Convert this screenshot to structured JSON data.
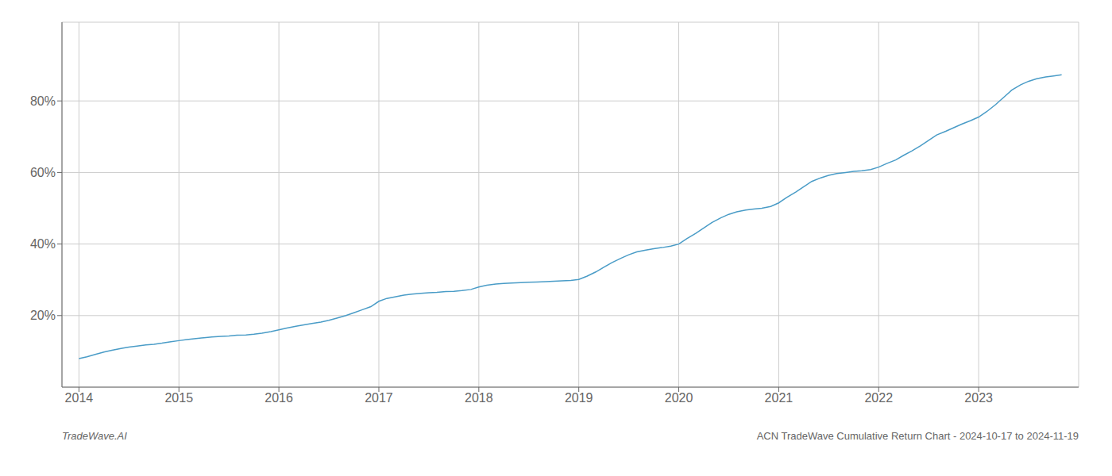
{
  "chart_data": {
    "type": "line",
    "x": [
      2014.0,
      2014.08,
      2014.17,
      2014.25,
      2014.33,
      2014.42,
      2014.5,
      2014.58,
      2014.67,
      2014.75,
      2014.83,
      2014.92,
      2015.0,
      2015.08,
      2015.17,
      2015.25,
      2015.33,
      2015.42,
      2015.5,
      2015.58,
      2015.67,
      2015.75,
      2015.83,
      2015.92,
      2016.0,
      2016.08,
      2016.17,
      2016.25,
      2016.33,
      2016.42,
      2016.5,
      2016.58,
      2016.67,
      2016.75,
      2016.83,
      2016.92,
      2017.0,
      2017.08,
      2017.17,
      2017.25,
      2017.33,
      2017.42,
      2017.5,
      2017.58,
      2017.67,
      2017.75,
      2017.83,
      2017.92,
      2018.0,
      2018.08,
      2018.17,
      2018.25,
      2018.33,
      2018.42,
      2018.5,
      2018.58,
      2018.67,
      2018.75,
      2018.83,
      2018.92,
      2019.0,
      2019.08,
      2019.17,
      2019.25,
      2019.33,
      2019.42,
      2019.5,
      2019.58,
      2019.67,
      2019.75,
      2019.83,
      2019.92,
      2020.0,
      2020.08,
      2020.17,
      2020.25,
      2020.33,
      2020.42,
      2020.5,
      2020.58,
      2020.67,
      2020.75,
      2020.83,
      2020.92,
      2021.0,
      2021.08,
      2021.17,
      2021.25,
      2021.33,
      2021.42,
      2021.5,
      2021.58,
      2021.67,
      2021.75,
      2021.83,
      2021.92,
      2022.0,
      2022.08,
      2022.17,
      2022.25,
      2022.33,
      2022.42,
      2022.5,
      2022.58,
      2022.67,
      2022.75,
      2022.83,
      2022.92,
      2023.0,
      2023.08,
      2023.17,
      2023.25,
      2023.33,
      2023.42,
      2023.5,
      2023.58,
      2023.67,
      2023.75,
      2023.83
    ],
    "values": [
      8.0,
      8.5,
      9.2,
      9.8,
      10.3,
      10.8,
      11.2,
      11.5,
      11.8,
      12.0,
      12.3,
      12.7,
      13.0,
      13.3,
      13.6,
      13.8,
      14.0,
      14.2,
      14.3,
      14.5,
      14.6,
      14.8,
      15.1,
      15.5,
      16.0,
      16.5,
      17.0,
      17.4,
      17.8,
      18.2,
      18.7,
      19.3,
      20.0,
      20.8,
      21.6,
      22.5,
      24.0,
      24.8,
      25.3,
      25.7,
      26.0,
      26.2,
      26.4,
      26.5,
      26.7,
      26.8,
      27.0,
      27.3,
      28.0,
      28.5,
      28.8,
      29.0,
      29.1,
      29.2,
      29.3,
      29.4,
      29.5,
      29.6,
      29.7,
      29.8,
      30.1,
      31.0,
      32.2,
      33.5,
      34.8,
      36.0,
      37.0,
      37.8,
      38.3,
      38.7,
      39.0,
      39.4,
      40.0,
      41.5,
      43.0,
      44.5,
      46.0,
      47.3,
      48.3,
      49.0,
      49.5,
      49.8,
      50.0,
      50.5,
      51.5,
      53.0,
      54.5,
      56.0,
      57.5,
      58.5,
      59.2,
      59.7,
      60.0,
      60.3,
      60.5,
      60.8,
      61.5,
      62.5,
      63.5,
      64.8,
      66.0,
      67.5,
      69.0,
      70.5,
      71.5,
      72.5,
      73.5,
      74.5,
      75.5,
      77.0,
      79.0,
      81.0,
      83.0,
      84.5,
      85.5,
      86.2,
      86.7,
      87.0,
      87.3
    ],
    "color": "#4a9cc7",
    "xlim": [
      2013.83,
      2024.0
    ],
    "ylim": [
      0,
      102
    ],
    "xticks": [
      2014,
      2015,
      2016,
      2017,
      2018,
      2019,
      2020,
      2021,
      2022,
      2023
    ],
    "yticks": [
      {
        "value": 20,
        "label": "20%"
      },
      {
        "value": 40,
        "label": "40%"
      },
      {
        "value": 60,
        "label": "60%"
      },
      {
        "value": 80,
        "label": "80%"
      }
    ],
    "grid": true,
    "annotations": [
      "TradeWave.AI",
      "ACN TradeWave Cumulative Return Chart - 2024-10-17 to 2024-11-19"
    ]
  }
}
